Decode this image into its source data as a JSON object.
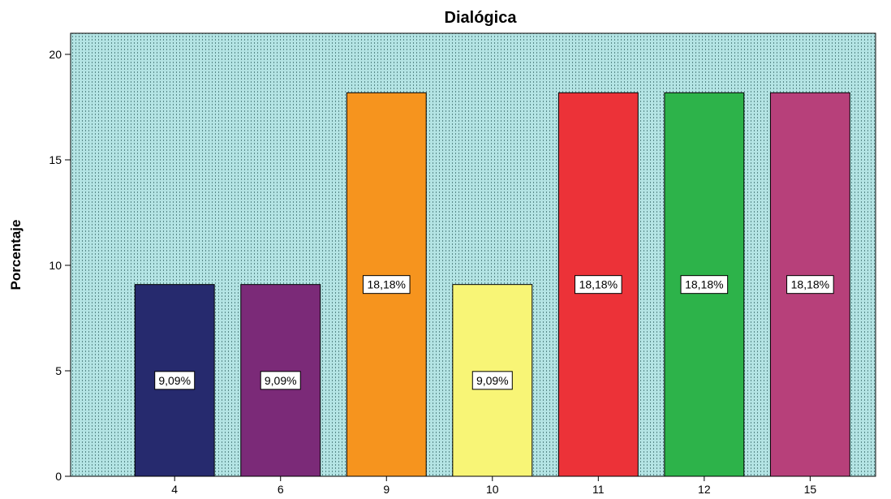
{
  "chart_data": {
    "type": "bar",
    "title": "Dialógica",
    "ylabel": "Porcentaje",
    "xlabel": "",
    "categories": [
      "4",
      "6",
      "9",
      "10",
      "11",
      "12",
      "15"
    ],
    "values": [
      9.09,
      9.09,
      18.18,
      9.09,
      18.18,
      18.18,
      18.18
    ],
    "data_labels": [
      "9,09%",
      "9,09%",
      "18,18%",
      "9,09%",
      "18,18%",
      "18,18%",
      "18,18%"
    ],
    "bar_colors": [
      "#262a6e",
      "#7b2a78",
      "#f6941e",
      "#f8f576",
      "#ec3238",
      "#2db34a",
      "#b7407a"
    ],
    "ylim": [
      0,
      21
    ],
    "yticks": [
      0,
      5,
      10,
      15,
      20
    ],
    "grid": false,
    "legend": "none",
    "plot_background": "#b4e4e4"
  }
}
